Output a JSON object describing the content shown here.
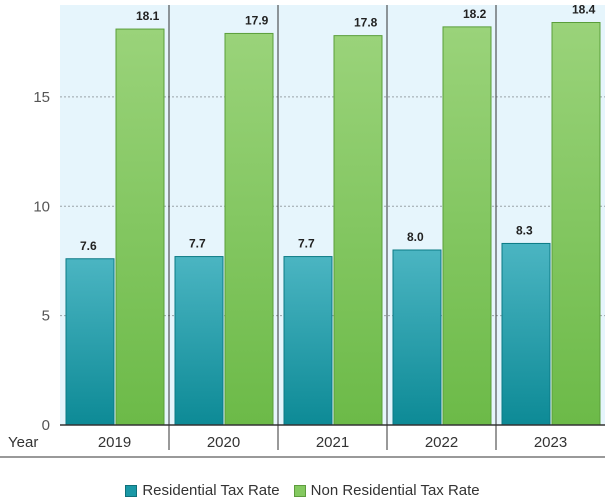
{
  "chart_data": {
    "type": "bar",
    "x_axis_label": "Year",
    "categories": [
      "2019",
      "2020",
      "2021",
      "2022",
      "2023"
    ],
    "series": [
      {
        "name": "Residential Tax Rate",
        "values": [
          7.6,
          7.7,
          7.7,
          8.0,
          8.3
        ],
        "labels": [
          "7.6",
          "7.7",
          "7.7",
          "8.0",
          "8.3"
        ],
        "color": "#2a9aa6"
      },
      {
        "name": "Non Residential Tax Rate",
        "values": [
          18.1,
          17.9,
          17.8,
          18.2,
          18.4
        ],
        "labels": [
          "18.1",
          "17.9",
          "17.8",
          "18.2",
          "18.4"
        ],
        "color": "#7cc45a"
      }
    ],
    "y_ticks": [
      0,
      5,
      10,
      15
    ],
    "ylim": [
      0,
      19.2
    ],
    "grid": "horizontal dotted",
    "background": "#e6f5fc",
    "legend_position": "bottom-center"
  }
}
